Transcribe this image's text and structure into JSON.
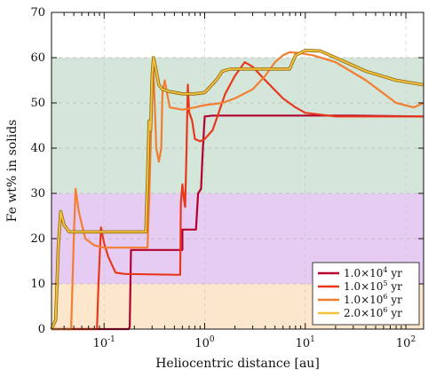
{
  "chart_data": {
    "type": "line",
    "xlabel": "Heliocentric distance [au]",
    "ylabel": "Fe wt% in solids",
    "xscale": "log",
    "xlim": [
      0.03,
      150
    ],
    "ylim": [
      0,
      70
    ],
    "x_ticks": [
      {
        "value": 0.1,
        "base": "10",
        "exp": "-1"
      },
      {
        "value": 1,
        "base": "10",
        "exp": "0"
      },
      {
        "value": 10,
        "base": "10",
        "exp": "1"
      },
      {
        "value": 100,
        "base": "10",
        "exp": "2"
      }
    ],
    "y_ticks": [
      0,
      10,
      20,
      30,
      40,
      50,
      60,
      70
    ],
    "grid": "horizontal dashed at y ticks",
    "bands": [
      {
        "from": 0,
        "to": 10,
        "color": "#fde7cc"
      },
      {
        "from": 10,
        "to": 30,
        "color": "#e6ccf2"
      },
      {
        "from": 30,
        "to": 60,
        "color": "#d3e6d9"
      }
    ],
    "legend_position": "bottom-right",
    "series": [
      {
        "legend_prefix": "1.0×10",
        "legend_exp": "4",
        "legend_suffix": " yr",
        "color": "#b3002e",
        "points": [
          [
            0.03,
            0
          ],
          [
            0.175,
            0
          ],
          [
            0.18,
            0.5
          ],
          [
            0.185,
            17.5
          ],
          [
            0.6,
            17.5
          ],
          [
            0.6,
            22
          ],
          [
            0.68,
            22
          ],
          [
            0.82,
            22
          ],
          [
            0.86,
            30
          ],
          [
            0.92,
            31
          ],
          [
            0.95,
            38
          ],
          [
            1.0,
            47
          ],
          [
            1.2,
            47.2
          ],
          [
            10,
            47.2
          ],
          [
            30,
            47.2
          ],
          [
            150,
            47
          ]
        ]
      },
      {
        "legend_prefix": "1.0×10",
        "legend_exp": "5",
        "legend_suffix": " yr",
        "color": "#e8381c",
        "points": [
          [
            0.03,
            0
          ],
          [
            0.085,
            0
          ],
          [
            0.088,
            10
          ],
          [
            0.093,
            22.5
          ],
          [
            0.1,
            19
          ],
          [
            0.11,
            16
          ],
          [
            0.13,
            12.5
          ],
          [
            0.16,
            12.2
          ],
          [
            0.57,
            12
          ],
          [
            0.58,
            28
          ],
          [
            0.6,
            32
          ],
          [
            0.62,
            29
          ],
          [
            0.64,
            27
          ],
          [
            0.66,
            40
          ],
          [
            0.68,
            54
          ],
          [
            0.7,
            48
          ],
          [
            0.75,
            46
          ],
          [
            0.8,
            42
          ],
          [
            0.9,
            41.5
          ],
          [
            1.0,
            42
          ],
          [
            1.2,
            44
          ],
          [
            1.6,
            52
          ],
          [
            2.0,
            56
          ],
          [
            2.5,
            59
          ],
          [
            3.0,
            58
          ],
          [
            4.0,
            55
          ],
          [
            6.0,
            51
          ],
          [
            8.0,
            49
          ],
          [
            10,
            47.8
          ],
          [
            20,
            47
          ],
          [
            150,
            47
          ]
        ]
      },
      {
        "legend_prefix": "1.0×10",
        "legend_exp": "6",
        "legend_suffix": " yr",
        "color": "#f47d32",
        "points": [
          [
            0.03,
            0
          ],
          [
            0.047,
            0
          ],
          [
            0.05,
            20
          ],
          [
            0.052,
            31
          ],
          [
            0.056,
            26
          ],
          [
            0.065,
            20
          ],
          [
            0.08,
            18.5
          ],
          [
            0.1,
            18
          ],
          [
            0.27,
            18
          ],
          [
            0.28,
            28
          ],
          [
            0.3,
            52
          ],
          [
            0.31,
            57
          ],
          [
            0.33,
            40
          ],
          [
            0.35,
            37
          ],
          [
            0.37,
            40
          ],
          [
            0.38,
            52
          ],
          [
            0.4,
            55
          ],
          [
            0.45,
            49
          ],
          [
            0.6,
            48.5
          ],
          [
            0.8,
            49
          ],
          [
            1.0,
            49.5
          ],
          [
            1.5,
            50
          ],
          [
            2.0,
            51
          ],
          [
            3.0,
            53
          ],
          [
            4.0,
            56
          ],
          [
            5.0,
            59
          ],
          [
            6.0,
            60.5
          ],
          [
            7.0,
            61.2
          ],
          [
            9.0,
            61
          ],
          [
            12,
            60.5
          ],
          [
            20,
            59
          ],
          [
            40,
            55
          ],
          [
            80,
            50
          ],
          [
            120,
            49
          ],
          [
            150,
            50
          ]
        ]
      },
      {
        "legend_prefix": "2.0×10",
        "legend_exp": "6",
        "legend_suffix": " yr",
        "color": "#f5c03d",
        "points": [
          [
            0.03,
            0
          ],
          [
            0.033,
            2
          ],
          [
            0.035,
            18
          ],
          [
            0.037,
            26
          ],
          [
            0.04,
            23
          ],
          [
            0.045,
            21.5
          ],
          [
            0.26,
            21.5
          ],
          [
            0.27,
            33
          ],
          [
            0.28,
            46
          ],
          [
            0.29,
            44
          ],
          [
            0.3,
            56
          ],
          [
            0.31,
            60
          ],
          [
            0.33,
            57
          ],
          [
            0.35,
            54
          ],
          [
            0.38,
            53
          ],
          [
            0.45,
            52.5
          ],
          [
            0.6,
            52
          ],
          [
            0.8,
            52
          ],
          [
            1.0,
            52.3
          ],
          [
            1.3,
            55
          ],
          [
            1.5,
            57
          ],
          [
            1.8,
            57.5
          ],
          [
            7,
            57.5
          ],
          [
            8,
            60.5
          ],
          [
            10,
            61.6
          ],
          [
            14,
            61.5
          ],
          [
            20,
            60
          ],
          [
            40,
            57
          ],
          [
            80,
            55
          ],
          [
            150,
            54
          ]
        ]
      }
    ]
  }
}
